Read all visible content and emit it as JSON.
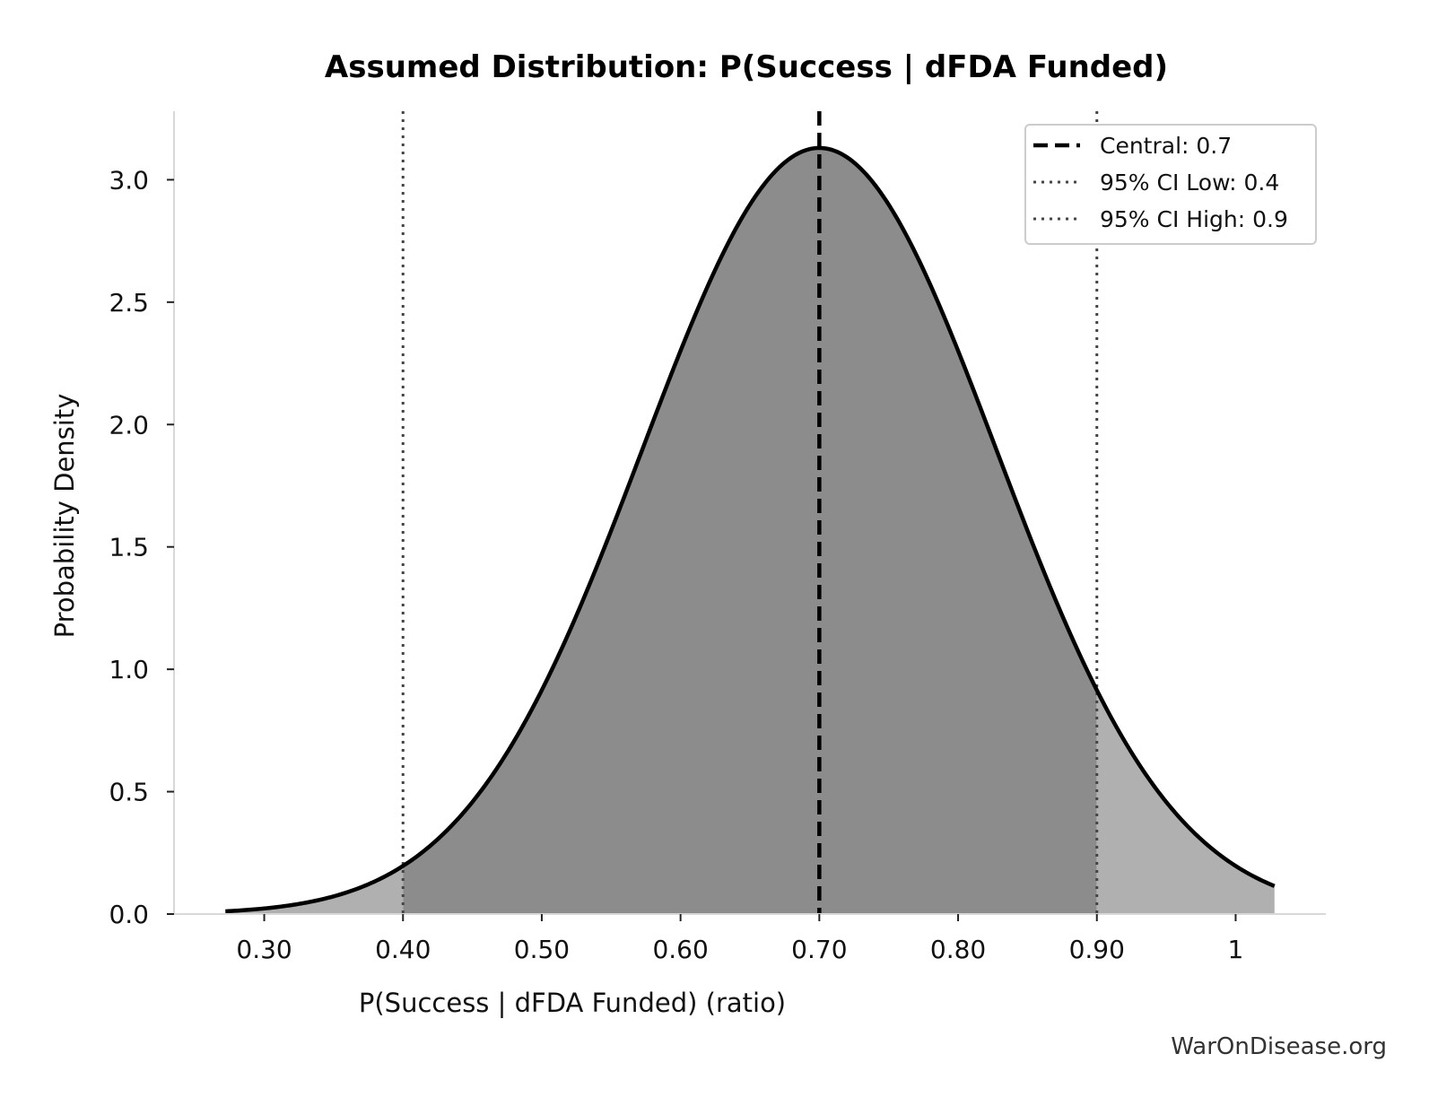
{
  "chart_data": {
    "type": "area",
    "title": "Assumed Distribution: P(Success | dFDA Funded)",
    "xlabel": "P(Success | dFDA Funded) (ratio)",
    "ylabel": "Probability Density",
    "xlim": [
      0.235,
      1.065
    ],
    "ylim": [
      0,
      3.28
    ],
    "x_ticks": [
      0.3,
      0.4,
      0.5,
      0.6,
      0.7,
      0.8,
      0.9,
      1.0
    ],
    "x_tick_labels": [
      "0.30",
      "0.40",
      "0.50",
      "0.60",
      "0.70",
      "0.80",
      "0.90",
      "1"
    ],
    "y_ticks": [
      0.0,
      0.5,
      1.0,
      1.5,
      2.0,
      2.5,
      3.0
    ],
    "y_tick_labels": [
      "0.0",
      "0.5",
      "1.0",
      "1.5",
      "2.0",
      "2.5",
      "3.0"
    ],
    "x_range": [
      0.272,
      1.028
    ],
    "distribution": {
      "mean": 0.7,
      "sd": 0.1275,
      "peak_density": 3.13
    },
    "reference_lines": [
      {
        "label": "Central: 0.7",
        "x": 0.7,
        "style": "dashed",
        "color": "#000000"
      },
      {
        "label": "95% CI Low: 0.4",
        "x": 0.4,
        "style": "dotted",
        "color": "#444444"
      },
      {
        "label": "95% CI High: 0.9",
        "x": 0.9,
        "style": "dotted",
        "color": "#444444"
      }
    ],
    "fill_colors": {
      "inner": "#8c8c8c",
      "outer": "#b0b0b0",
      "curve": "#000000"
    },
    "grid": false,
    "legend_position": "top-right"
  },
  "watermark": "WarOnDisease.org"
}
